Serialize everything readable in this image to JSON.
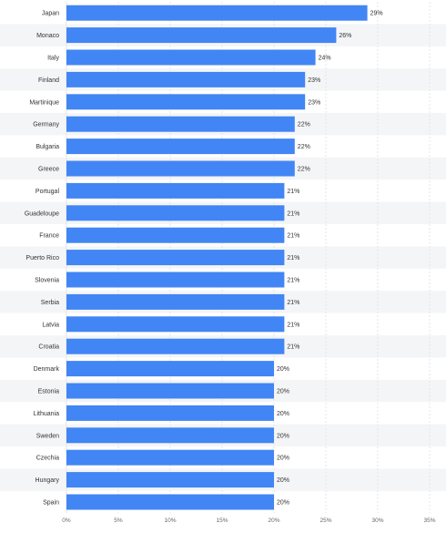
{
  "chart_data": {
    "type": "bar",
    "orientation": "horizontal",
    "categories": [
      "Japan",
      "Monaco",
      "Italy",
      "Finland",
      "Martinique",
      "Germany",
      "Bulgaria",
      "Greece",
      "Portugal",
      "Guadeloupe",
      "France",
      "Puerto Rico",
      "Slovenia",
      "Serbia",
      "Latvia",
      "Croatia",
      "Denmark",
      "Estonia",
      "Lithuania",
      "Sweden",
      "Czechia",
      "Hungary",
      "Spain"
    ],
    "values": [
      29,
      26,
      24,
      23,
      23,
      22,
      22,
      22,
      21,
      21,
      21,
      21,
      21,
      21,
      21,
      21,
      20,
      20,
      20,
      20,
      20,
      20,
      20
    ],
    "value_labels": [
      "29%",
      "26%",
      "24%",
      "23%",
      "23%",
      "22%",
      "22%",
      "22%",
      "21%",
      "21%",
      "21%",
      "21%",
      "21%",
      "21%",
      "21%",
      "21%",
      "20%",
      "20%",
      "20%",
      "20%",
      "20%",
      "20%",
      "20%"
    ],
    "xlim": [
      0,
      35
    ],
    "x_ticks": [
      0,
      5,
      10,
      15,
      20,
      25,
      30,
      35
    ],
    "x_tick_labels": [
      "0%",
      "5%",
      "10%",
      "15%",
      "20%",
      "25%",
      "30%",
      "35%"
    ],
    "xlabel": "",
    "ylabel": "",
    "title": "",
    "grid": true,
    "bar_color": "#4285f4",
    "stripe_color": "#f4f5f7"
  }
}
